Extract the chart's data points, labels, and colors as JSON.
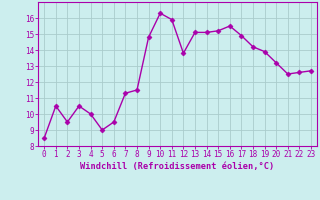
{
  "x": [
    0,
    1,
    2,
    3,
    4,
    5,
    6,
    7,
    8,
    9,
    10,
    11,
    12,
    13,
    14,
    15,
    16,
    17,
    18,
    19,
    20,
    21,
    22,
    23
  ],
  "y": [
    8.5,
    10.5,
    9.5,
    10.5,
    10.0,
    9.0,
    9.5,
    11.3,
    11.5,
    14.8,
    16.3,
    15.9,
    13.8,
    15.1,
    15.1,
    15.2,
    15.5,
    14.9,
    14.2,
    13.9,
    13.2,
    12.5,
    12.6,
    12.7
  ],
  "line_color": "#aa00aa",
  "marker": "D",
  "marker_size": 2.5,
  "bg_color": "#cceeee",
  "grid_color": "#aacccc",
  "xlabel": "Windchill (Refroidissement éolien,°C)",
  "ylim": [
    8,
    17
  ],
  "xlim": [
    -0.5,
    23.5
  ],
  "yticks": [
    8,
    9,
    10,
    11,
    12,
    13,
    14,
    15,
    16
  ],
  "xticks": [
    0,
    1,
    2,
    3,
    4,
    5,
    6,
    7,
    8,
    9,
    10,
    11,
    12,
    13,
    14,
    15,
    16,
    17,
    18,
    19,
    20,
    21,
    22,
    23
  ],
  "xtick_labels": [
    "0",
    "1",
    "2",
    "3",
    "4",
    "5",
    "6",
    "7",
    "8",
    "9",
    "10",
    "11",
    "12",
    "13",
    "14",
    "15",
    "16",
    "17",
    "18",
    "19",
    "20",
    "21",
    "22",
    "23"
  ],
  "label_color": "#aa00aa",
  "tick_label_color": "#aa00aa",
  "line_width": 1.0,
  "tick_fontsize": 5.5,
  "xlabel_fontsize": 6.2
}
